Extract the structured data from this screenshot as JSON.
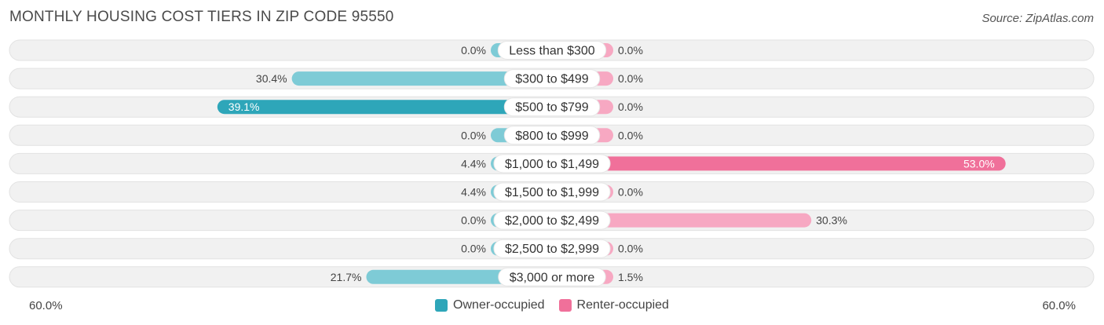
{
  "title": "MONTHLY HOUSING COST TIERS IN ZIP CODE 95550",
  "source": "Source: ZipAtlas.com",
  "axis": {
    "left_label": "60.0%",
    "right_label": "60.0%"
  },
  "colors": {
    "owner_light": "#7ecbd6",
    "owner_dark": "#2ea6b9",
    "renter_light": "#f7a8c2",
    "renter_dark": "#f0709a",
    "row_bg": "#f1f1f1",
    "row_border": "#e2e2e2"
  },
  "legend": [
    {
      "label": "Owner-occupied",
      "color": "#2ea6b9"
    },
    {
      "label": "Renter-occupied",
      "color": "#f0709a"
    }
  ],
  "chart_data": {
    "type": "bar",
    "orientation": "horizontal-diverging",
    "title": "MONTHLY HOUSING COST TIERS IN ZIP CODE 95550",
    "xlim": [
      -60,
      60
    ],
    "categories": [
      "Less than $300",
      "$300 to $499",
      "$500 to $799",
      "$800 to $999",
      "$1,000 to $1,499",
      "$1,500 to $1,999",
      "$2,000 to $2,499",
      "$2,500 to $2,999",
      "$3,000 or more"
    ],
    "series": [
      {
        "name": "Owner-occupied",
        "values": [
          0.0,
          30.4,
          39.1,
          0.0,
          4.4,
          4.4,
          0.0,
          0.0,
          21.7
        ],
        "labels": [
          "0.0%",
          "30.4%",
          "39.1%",
          "0.0%",
          "4.4%",
          "4.4%",
          "0.0%",
          "0.0%",
          "21.7%"
        ]
      },
      {
        "name": "Renter-occupied",
        "values": [
          0.0,
          0.0,
          0.0,
          0.0,
          53.0,
          0.0,
          30.3,
          0.0,
          1.5
        ],
        "labels": [
          "0.0%",
          "0.0%",
          "0.0%",
          "0.0%",
          "53.0%",
          "0.0%",
          "30.3%",
          "0.0%",
          "1.5%"
        ]
      }
    ]
  }
}
